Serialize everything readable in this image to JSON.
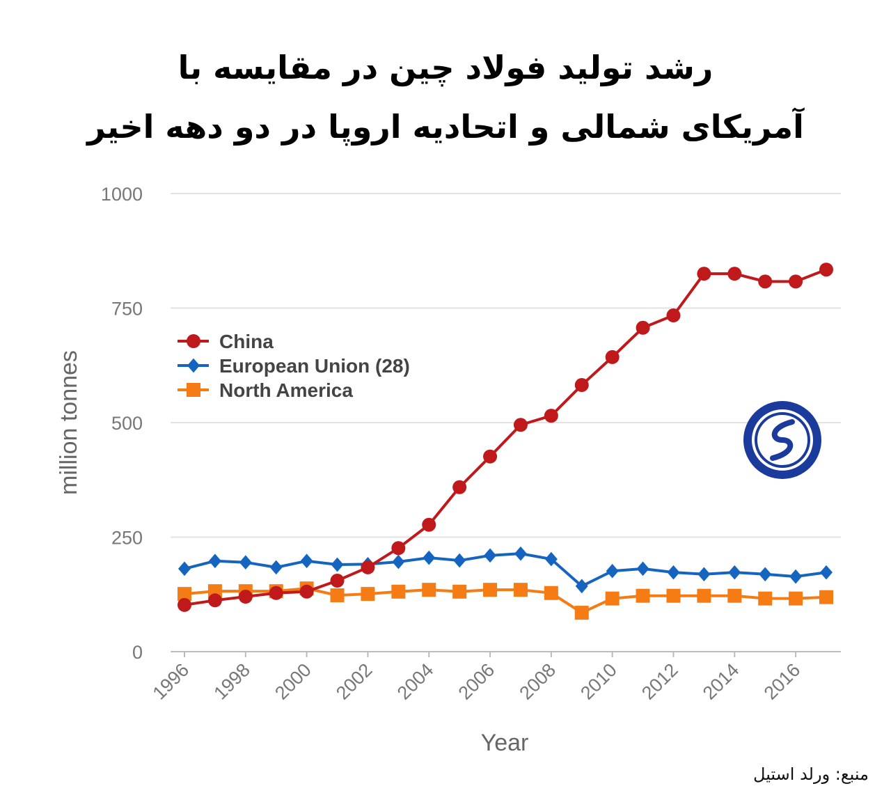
{
  "title_lines": [
    "رشد تولید فولاد چین در مقایسه با",
    "آمریکای شمالی و اتحادیه اروپا در دو دهه اخیر"
  ],
  "source": "منبع: ورلد استیل",
  "chart_data": {
    "type": "line",
    "title": "رشد تولید فولاد چین در مقایسه با آمریکای شمالی و اتحادیه اروپا در دو دهه اخیر",
    "xlabel": "Year",
    "ylabel": "million tonnes",
    "ylim": [
      0,
      1000
    ],
    "yticks": [
      0,
      250,
      500,
      750,
      1000
    ],
    "x": [
      1996,
      1997,
      1998,
      1999,
      2000,
      2001,
      2002,
      2003,
      2004,
      2005,
      2006,
      2007,
      2008,
      2009,
      2010,
      2011,
      2012,
      2013,
      2014,
      2015,
      2016,
      2017
    ],
    "xtick_labels": [
      "1996",
      "1998",
      "2000",
      "2002",
      "2004",
      "2006",
      "2008",
      "2010",
      "2012",
      "2014",
      "2016"
    ],
    "grid": true,
    "legend_position": "left-middle",
    "series": [
      {
        "name": "China",
        "color": "#c0191c",
        "marker": "circle",
        "values": [
          102,
          112,
          120,
          128,
          131,
          155,
          184,
          226,
          277,
          359,
          426,
          495,
          515,
          582,
          643,
          707,
          734,
          825,
          825,
          808,
          808,
          834
        ]
      },
      {
        "name": "European Union (28)",
        "color": "#1565c0",
        "marker": "diamond",
        "values": [
          181,
          198,
          195,
          184,
          198,
          190,
          191,
          196,
          205,
          199,
          210,
          214,
          202,
          143,
          176,
          181,
          173,
          169,
          173,
          169,
          164,
          173
        ]
      },
      {
        "name": "North America",
        "color": "#f57c14",
        "marker": "square",
        "values": [
          126,
          132,
          132,
          132,
          138,
          123,
          126,
          131,
          135,
          131,
          135,
          135,
          128,
          85,
          116,
          122,
          122,
          122,
          122,
          116,
          116,
          119
        ]
      }
    ]
  }
}
